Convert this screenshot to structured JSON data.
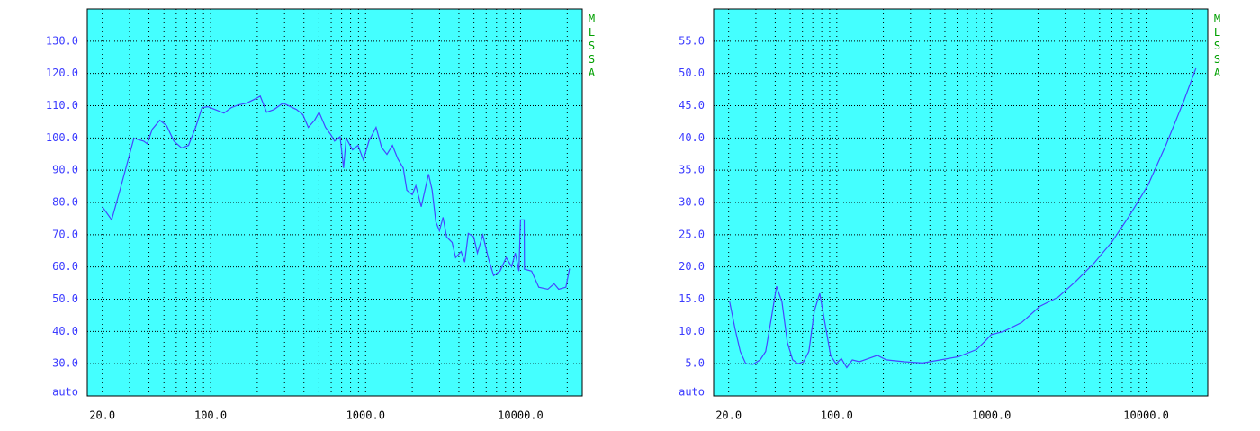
{
  "chart_data": [
    {
      "type": "line",
      "log_x": true,
      "grid": true,
      "color": "#4646ff",
      "background": "#44ffff",
      "side_label": "MLSSA",
      "xlim": [
        16,
        25000
      ],
      "ylim": [
        20,
        140
      ],
      "xticks": [
        {
          "value": 20,
          "label": "20.0"
        },
        {
          "value": 100,
          "label": "100.0"
        },
        {
          "value": 1000,
          "label": "1000.0"
        },
        {
          "value": 10000,
          "label": "10000.0"
        }
      ],
      "minor_xticks": [
        30,
        40,
        50,
        60,
        70,
        80,
        90,
        200,
        300,
        400,
        500,
        600,
        700,
        800,
        900,
        2000,
        3000,
        4000,
        5000,
        6000,
        7000,
        8000,
        9000,
        20000
      ],
      "yticks": [
        {
          "value": 20,
          "label": "auto"
        },
        {
          "value": 30,
          "label": "30.0"
        },
        {
          "value": 40,
          "label": "40.0"
        },
        {
          "value": 50,
          "label": "50.0"
        },
        {
          "value": 60,
          "label": "60.0"
        },
        {
          "value": 70,
          "label": "70.0"
        },
        {
          "value": 80,
          "label": "80.0"
        },
        {
          "value": 90,
          "label": "90.0"
        },
        {
          "value": 100,
          "label": "100.0"
        },
        {
          "value": 110,
          "label": "110.0"
        },
        {
          "value": 120,
          "label": "120.0"
        },
        {
          "value": 130,
          "label": "130.0"
        }
      ],
      "x": [
        20,
        23,
        26,
        30,
        32,
        37,
        39,
        42,
        47,
        52,
        58,
        65,
        72,
        80,
        88,
        96,
        107,
        122,
        136,
        150,
        171,
        196,
        209,
        230,
        256,
        293,
        322,
        359,
        394,
        427,
        469,
        501,
        551,
        597,
        631,
        684,
        721,
        750,
        824,
        893,
        968,
        1050,
        1169,
        1268,
        1374,
        1490,
        1614,
        1750,
        1845,
        2000,
        2110,
        2287,
        2415,
        2548,
        2688,
        2838,
        2993,
        3158,
        3334,
        3614,
        3812,
        4131,
        4358,
        4602,
        4987,
        5262,
        5703,
        6180,
        6699,
        7362,
        8075,
        8751,
        9246,
        9750,
        9990,
        10560,
        10600,
        11770,
        13100,
        15000,
        16450,
        17600,
        19600,
        20700
      ],
      "values": [
        78.7,
        74.6,
        83.8,
        94.9,
        99.9,
        99,
        98.2,
        102.7,
        105.5,
        103.8,
        99,
        96.9,
        97.7,
        103.3,
        109.4,
        109.7,
        108.8,
        107.7,
        109.4,
        110.2,
        110.8,
        112.2,
        113,
        108,
        108.8,
        110.8,
        109.9,
        108.8,
        107.2,
        103.3,
        105.5,
        108,
        103.3,
        101,
        99,
        100.4,
        90.7,
        99.9,
        96.3,
        97.7,
        93.2,
        99,
        103.3,
        97.1,
        94.9,
        97.7,
        93.5,
        90.7,
        83.8,
        82.4,
        85.2,
        78.7,
        83.8,
        88.8,
        83.8,
        74,
        71.2,
        75.4,
        69.3,
        67.6,
        62.9,
        64.8,
        61.5,
        70.4,
        69.3,
        64.3,
        69.9,
        62.9,
        57.3,
        58.7,
        62.9,
        60.1,
        64.3,
        58.7,
        74.6,
        74.6,
        59.3,
        58.7,
        53.7,
        53.1,
        54.8,
        53.1,
        53.7,
        59.5
      ]
    },
    {
      "type": "line",
      "log_x": true,
      "grid": true,
      "color": "#4646ff",
      "background": "#44ffff",
      "side_label": "MLSSA",
      "xlim": [
        16,
        25000
      ],
      "ylim": [
        0,
        60
      ],
      "xticks": [
        {
          "value": 20,
          "label": "20.0"
        },
        {
          "value": 100,
          "label": "100.0"
        },
        {
          "value": 1000,
          "label": "1000.0"
        },
        {
          "value": 10000,
          "label": "10000.0"
        }
      ],
      "minor_xticks": [
        30,
        40,
        50,
        60,
        70,
        80,
        90,
        200,
        300,
        400,
        500,
        600,
        700,
        800,
        900,
        2000,
        3000,
        4000,
        5000,
        6000,
        7000,
        8000,
        9000,
        20000
      ],
      "yticks": [
        {
          "value": 0,
          "label": "auto"
        },
        {
          "value": 5,
          "label": "5.0"
        },
        {
          "value": 10,
          "label": "10.0"
        },
        {
          "value": 15,
          "label": "15.0"
        },
        {
          "value": 20,
          "label": "20.0"
        },
        {
          "value": 25,
          "label": "25.0"
        },
        {
          "value": 30,
          "label": "30.0"
        },
        {
          "value": 35,
          "label": "35.0"
        },
        {
          "value": 40,
          "label": "40.0"
        },
        {
          "value": 45,
          "label": "45.0"
        },
        {
          "value": 50,
          "label": "50.0"
        },
        {
          "value": 55,
          "label": "55.0"
        }
      ],
      "x": [
        20.3,
        22,
        23.8,
        25.8,
        28.7,
        32,
        34.7,
        37.6,
        40.8,
        44.2,
        47.9,
        51.9,
        56.2,
        61,
        66,
        71.6,
        77.6,
        84.1,
        91.2,
        98.8,
        107,
        116,
        126,
        140,
        160,
        183,
        209,
        274,
        359,
        469,
        614,
        802,
        918,
        995,
        1200,
        1571,
        2056,
        2688,
        3516,
        4602,
        6015,
        7870,
        10290,
        13460,
        17610,
        20950
      ],
      "values": [
        14.6,
        10.4,
        6.9,
        5,
        4.9,
        5.6,
        6.9,
        11.8,
        17,
        14.6,
        8.3,
        5.6,
        5,
        5.3,
        6.9,
        13.2,
        15.9,
        11.1,
        6.3,
        5,
        5.8,
        4.4,
        5.6,
        5.3,
        5.8,
        6.3,
        5.6,
        5.3,
        5.1,
        5.6,
        6.1,
        7.2,
        8.6,
        9.5,
        10,
        11.4,
        13.9,
        15.3,
        17.8,
        20.6,
        23.9,
        28.1,
        32.7,
        39,
        45.9,
        50.8
      ]
    }
  ]
}
